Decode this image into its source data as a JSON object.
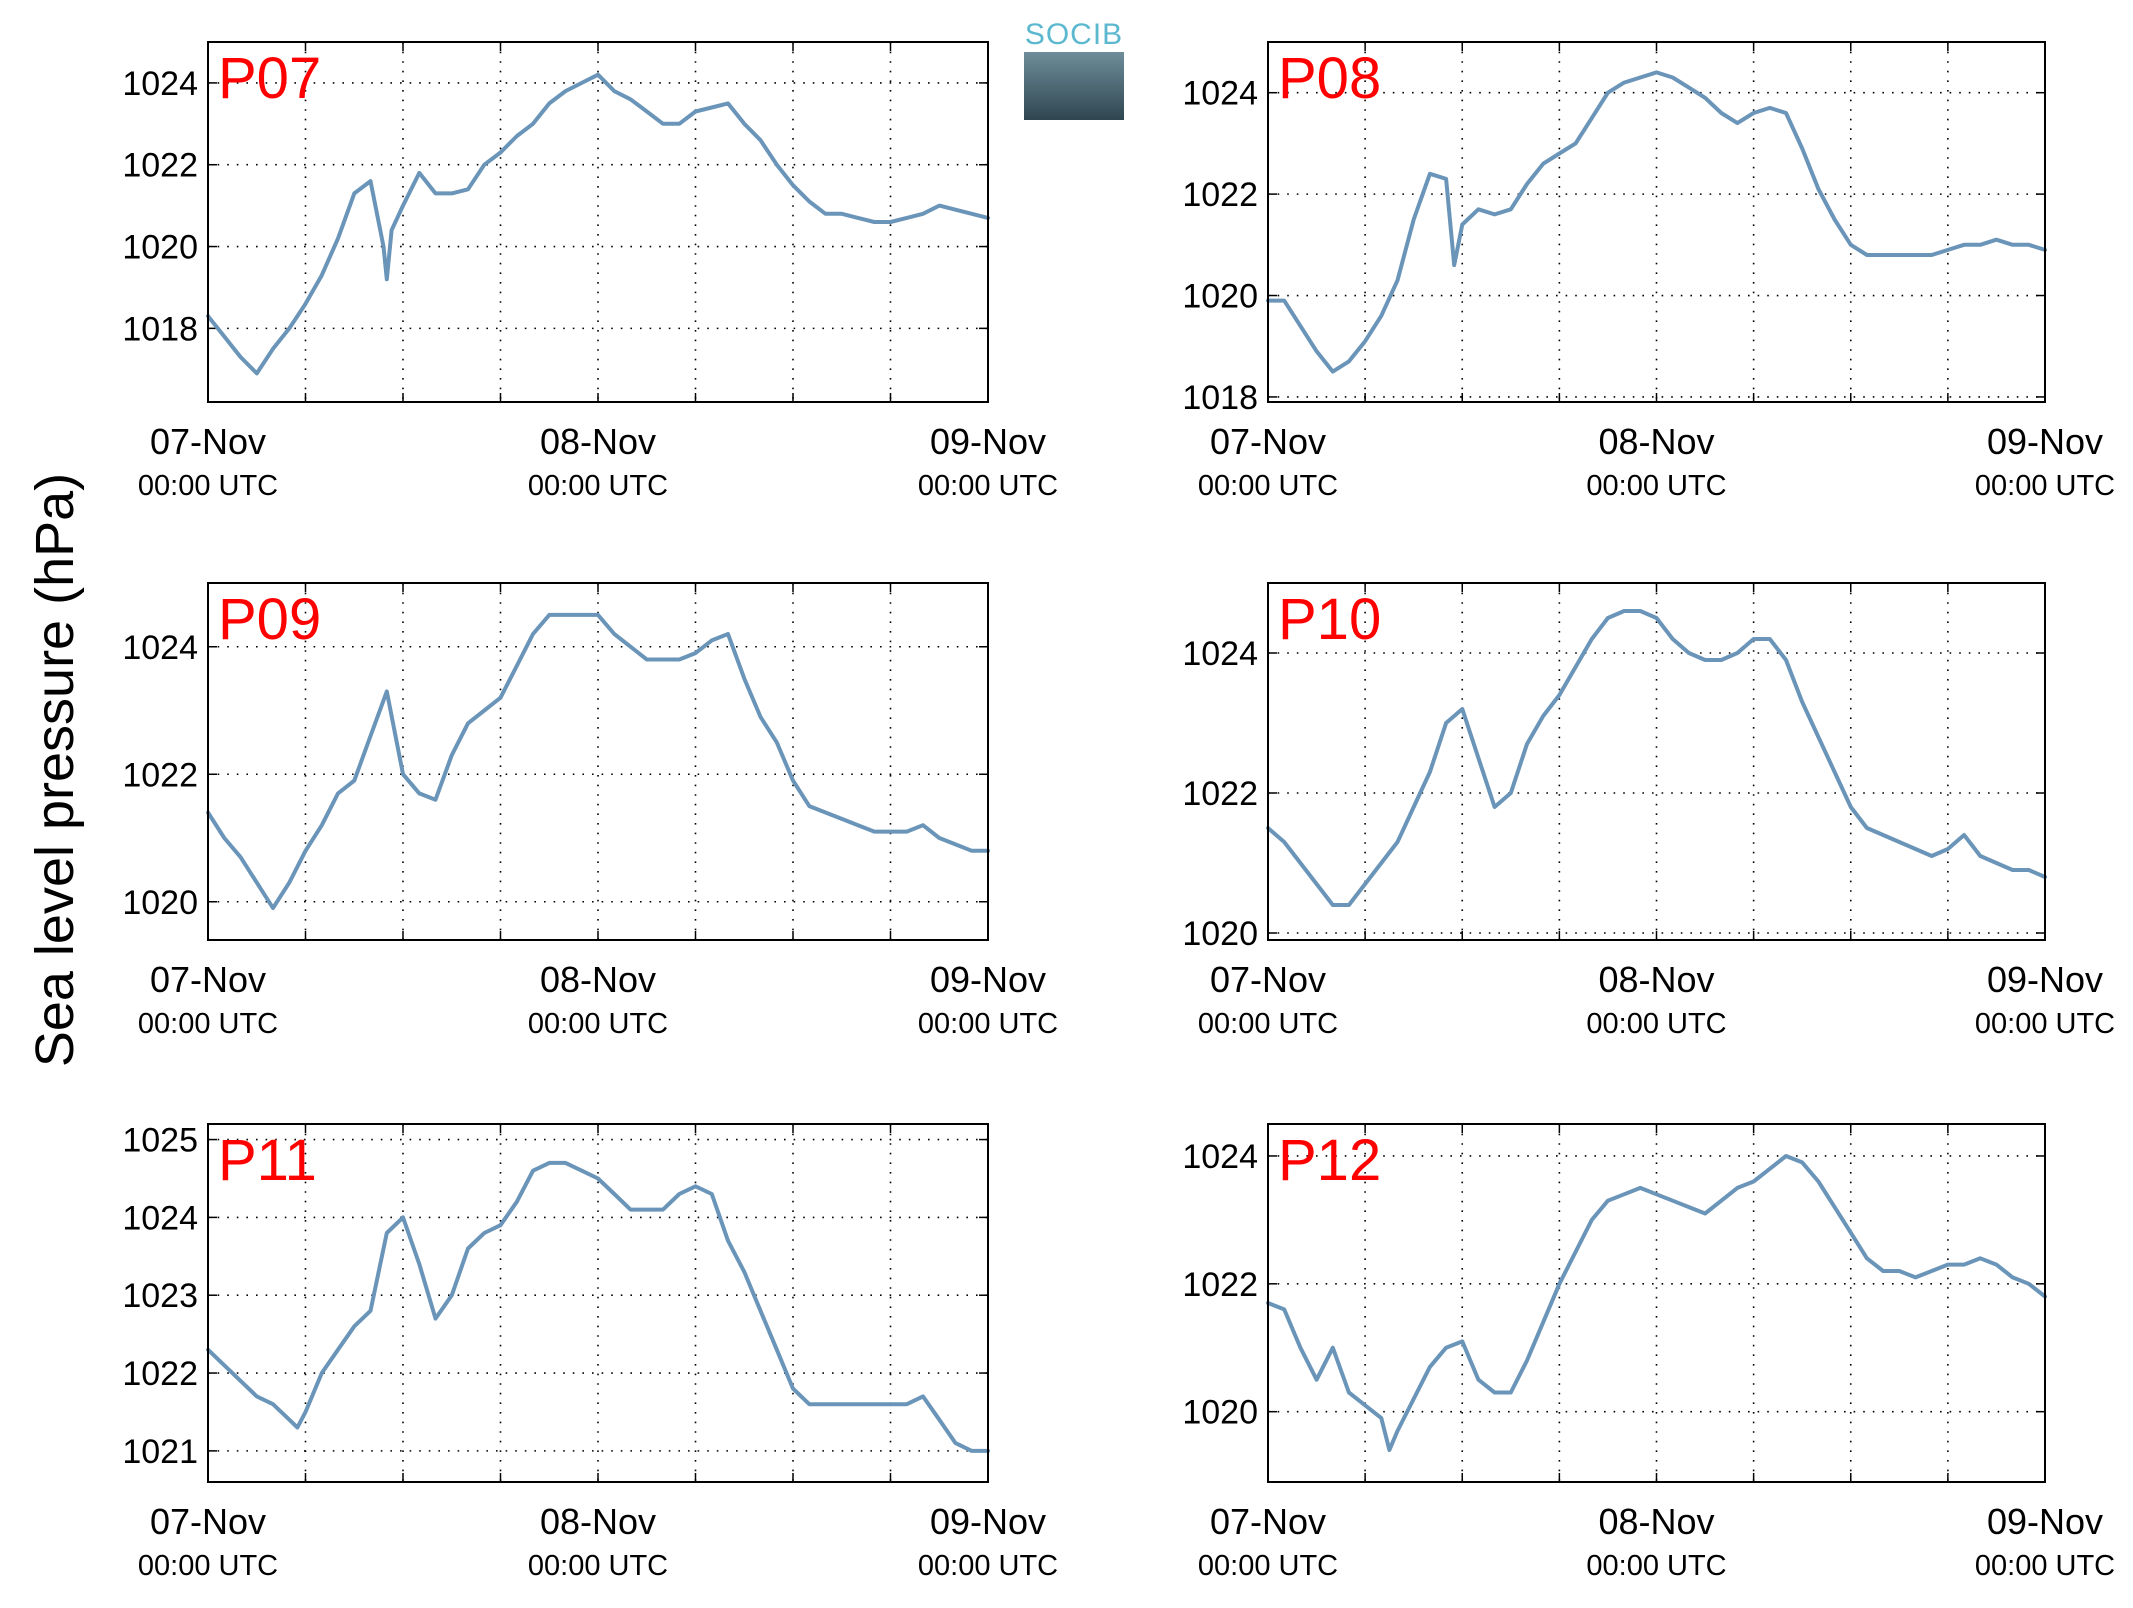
{
  "logo_text": "SOCIB",
  "ylabel": "Sea level pressure (hPa)",
  "colors": {
    "line": "#6a95b9",
    "panel_label": "#ff0000",
    "axis": "#000000",
    "grid": "#000000"
  },
  "chart_data": [
    {
      "type": "line",
      "title": "P07",
      "grid": true,
      "x_ticks": [
        {
          "day": "07-Nov",
          "time": "00:00 UTC"
        },
        {
          "day": "08-Nov",
          "time": "00:00 UTC"
        },
        {
          "day": "09-Nov",
          "time": "00:00 UTC"
        }
      ],
      "xlim_hours": [
        0,
        48
      ],
      "ylim": [
        1016.2,
        1025.0
      ],
      "yticks": [
        1018,
        1020,
        1022,
        1024
      ],
      "series": [
        {
          "x_hours": [
            0,
            1,
            2,
            3,
            4,
            5,
            6,
            7,
            8,
            9,
            10,
            10.8,
            11,
            11.3,
            12,
            13,
            14,
            15,
            16,
            17,
            18,
            19,
            20,
            21,
            22,
            23,
            24,
            25,
            26,
            27,
            28,
            29,
            30,
            31,
            32,
            33,
            34,
            35,
            36,
            37,
            38,
            39,
            40,
            41,
            42,
            43,
            44,
            45,
            46,
            47,
            48
          ],
          "y": [
            1018.3,
            1017.8,
            1017.3,
            1016.9,
            1017.5,
            1018.0,
            1018.6,
            1019.3,
            1020.2,
            1021.3,
            1021.6,
            1020.0,
            1019.2,
            1020.4,
            1021.0,
            1021.8,
            1021.3,
            1021.3,
            1021.4,
            1022.0,
            1022.3,
            1022.7,
            1023.0,
            1023.5,
            1023.8,
            1024.0,
            1024.2,
            1023.8,
            1023.6,
            1023.3,
            1023.0,
            1023.0,
            1023.3,
            1023.4,
            1023.5,
            1023.0,
            1022.6,
            1022.0,
            1021.5,
            1021.1,
            1020.8,
            1020.8,
            1020.7,
            1020.6,
            1020.6,
            1020.7,
            1020.8,
            1021.0,
            1020.9,
            1020.8,
            1020.7
          ]
        }
      ]
    },
    {
      "type": "line",
      "title": "P08",
      "grid": true,
      "x_ticks": [
        {
          "day": "07-Nov",
          "time": "00:00 UTC"
        },
        {
          "day": "08-Nov",
          "time": "00:00 UTC"
        },
        {
          "day": "09-Nov",
          "time": "00:00 UTC"
        }
      ],
      "xlim_hours": [
        0,
        48
      ],
      "ylim": [
        1017.9,
        1025.0
      ],
      "yticks": [
        1018,
        1020,
        1022,
        1024
      ],
      "series": [
        {
          "x_hours": [
            0,
            1,
            2,
            3,
            4,
            5,
            6,
            7,
            8,
            9,
            10,
            11,
            11.5,
            12,
            13,
            14,
            15,
            16,
            17,
            18,
            19,
            20,
            21,
            22,
            23,
            24,
            25,
            26,
            27,
            28,
            29,
            30,
            31,
            32,
            33,
            34,
            35,
            36,
            37,
            38,
            39,
            40,
            41,
            42,
            43,
            44,
            45,
            46,
            47,
            48
          ],
          "y": [
            1019.9,
            1019.9,
            1019.4,
            1018.9,
            1018.5,
            1018.7,
            1019.1,
            1019.6,
            1020.3,
            1021.5,
            1022.4,
            1022.3,
            1020.6,
            1021.4,
            1021.7,
            1021.6,
            1021.7,
            1022.2,
            1022.6,
            1022.8,
            1023.0,
            1023.5,
            1024.0,
            1024.2,
            1024.3,
            1024.4,
            1024.3,
            1024.1,
            1023.9,
            1023.6,
            1023.4,
            1023.6,
            1023.7,
            1023.6,
            1022.9,
            1022.1,
            1021.5,
            1021.0,
            1020.8,
            1020.8,
            1020.8,
            1020.8,
            1020.8,
            1020.9,
            1021.0,
            1021.0,
            1021.1,
            1021.0,
            1021.0,
            1020.9
          ]
        }
      ]
    },
    {
      "type": "line",
      "title": "P09",
      "grid": true,
      "x_ticks": [
        {
          "day": "07-Nov",
          "time": "00:00 UTC"
        },
        {
          "day": "08-Nov",
          "time": "00:00 UTC"
        },
        {
          "day": "09-Nov",
          "time": "00:00 UTC"
        }
      ],
      "xlim_hours": [
        0,
        48
      ],
      "ylim": [
        1019.4,
        1025.0
      ],
      "yticks": [
        1020,
        1022,
        1024
      ],
      "series": [
        {
          "x_hours": [
            0,
            1,
            2,
            3,
            4,
            5,
            6,
            7,
            8,
            9,
            10,
            11,
            12,
            13,
            14,
            15,
            16,
            17,
            18,
            19,
            20,
            21,
            22,
            23,
            24,
            25,
            26,
            27,
            28,
            29,
            30,
            31,
            32,
            33,
            34,
            35,
            36,
            37,
            38,
            39,
            40,
            41,
            42,
            43,
            44,
            45,
            46,
            47,
            48
          ],
          "y": [
            1021.4,
            1021.0,
            1020.7,
            1020.3,
            1019.9,
            1020.3,
            1020.8,
            1021.2,
            1021.7,
            1021.9,
            1022.6,
            1023.3,
            1022.0,
            1021.7,
            1021.6,
            1022.3,
            1022.8,
            1023.0,
            1023.2,
            1023.7,
            1024.2,
            1024.5,
            1024.5,
            1024.5,
            1024.5,
            1024.2,
            1024.0,
            1023.8,
            1023.8,
            1023.8,
            1023.9,
            1024.1,
            1024.2,
            1023.5,
            1022.9,
            1022.5,
            1021.9,
            1021.5,
            1021.4,
            1021.3,
            1021.2,
            1021.1,
            1021.1,
            1021.1,
            1021.2,
            1021.0,
            1020.9,
            1020.8,
            1020.8
          ]
        }
      ]
    },
    {
      "type": "line",
      "title": "P10",
      "grid": true,
      "x_ticks": [
        {
          "day": "07-Nov",
          "time": "00:00 UTC"
        },
        {
          "day": "08-Nov",
          "time": "00:00 UTC"
        },
        {
          "day": "09-Nov",
          "time": "00:00 UTC"
        }
      ],
      "xlim_hours": [
        0,
        48
      ],
      "ylim": [
        1019.9,
        1025.0
      ],
      "yticks": [
        1020,
        1022,
        1024
      ],
      "series": [
        {
          "x_hours": [
            0,
            1,
            2,
            3,
            4,
            5,
            6,
            7,
            8,
            9,
            10,
            11,
            12,
            13,
            14,
            15,
            16,
            17,
            18,
            19,
            20,
            21,
            22,
            23,
            24,
            25,
            26,
            27,
            28,
            29,
            30,
            31,
            32,
            33,
            34,
            35,
            36,
            37,
            38,
            39,
            40,
            41,
            42,
            43,
            44,
            45,
            46,
            47,
            48
          ],
          "y": [
            1021.5,
            1021.3,
            1021.0,
            1020.7,
            1020.4,
            1020.4,
            1020.7,
            1021.0,
            1021.3,
            1021.8,
            1022.3,
            1023.0,
            1023.2,
            1022.5,
            1021.8,
            1022.0,
            1022.7,
            1023.1,
            1023.4,
            1023.8,
            1024.2,
            1024.5,
            1024.6,
            1024.6,
            1024.5,
            1024.2,
            1024.0,
            1023.9,
            1023.9,
            1024.0,
            1024.2,
            1024.2,
            1023.9,
            1023.3,
            1022.8,
            1022.3,
            1021.8,
            1021.5,
            1021.4,
            1021.3,
            1021.2,
            1021.1,
            1021.2,
            1021.4,
            1021.1,
            1021.0,
            1020.9,
            1020.9,
            1020.8
          ]
        }
      ]
    },
    {
      "type": "line",
      "title": "P11",
      "grid": true,
      "x_ticks": [
        {
          "day": "07-Nov",
          "time": "00:00 UTC"
        },
        {
          "day": "08-Nov",
          "time": "00:00 UTC"
        },
        {
          "day": "09-Nov",
          "time": "00:00 UTC"
        }
      ],
      "xlim_hours": [
        0,
        48
      ],
      "ylim": [
        1020.6,
        1025.2
      ],
      "yticks": [
        1021,
        1022,
        1023,
        1024,
        1025
      ],
      "series": [
        {
          "x_hours": [
            0,
            1,
            2,
            3,
            4,
            5,
            5.5,
            6,
            7,
            8,
            9,
            10,
            11,
            12,
            13,
            14,
            15,
            16,
            17,
            18,
            19,
            20,
            21,
            22,
            23,
            24,
            25,
            26,
            27,
            28,
            29,
            30,
            31,
            32,
            33,
            34,
            35,
            36,
            37,
            38,
            39,
            40,
            41,
            42,
            43,
            44,
            45,
            46,
            47,
            48
          ],
          "y": [
            1022.3,
            1022.1,
            1021.9,
            1021.7,
            1021.6,
            1021.4,
            1021.3,
            1021.5,
            1022.0,
            1022.3,
            1022.6,
            1022.8,
            1023.8,
            1024.0,
            1023.4,
            1022.7,
            1023.0,
            1023.6,
            1023.8,
            1023.9,
            1024.2,
            1024.6,
            1024.7,
            1024.7,
            1024.6,
            1024.5,
            1024.3,
            1024.1,
            1024.1,
            1024.1,
            1024.3,
            1024.4,
            1024.3,
            1023.7,
            1023.3,
            1022.8,
            1022.3,
            1021.8,
            1021.6,
            1021.6,
            1021.6,
            1021.6,
            1021.6,
            1021.6,
            1021.6,
            1021.7,
            1021.4,
            1021.1,
            1021.0,
            1021.0
          ]
        }
      ]
    },
    {
      "type": "line",
      "title": "P12",
      "grid": true,
      "x_ticks": [
        {
          "day": "07-Nov",
          "time": "00:00 UTC"
        },
        {
          "day": "08-Nov",
          "time": "00:00 UTC"
        },
        {
          "day": "09-Nov",
          "time": "00:00 UTC"
        }
      ],
      "xlim_hours": [
        0,
        48
      ],
      "ylim": [
        1018.9,
        1024.5
      ],
      "yticks": [
        1020,
        1022,
        1024
      ],
      "series": [
        {
          "x_hours": [
            0,
            1,
            2,
            3,
            4,
            5,
            6,
            7,
            7.5,
            8,
            9,
            10,
            11,
            12,
            13,
            14,
            15,
            16,
            17,
            18,
            19,
            20,
            21,
            22,
            23,
            24,
            25,
            26,
            27,
            28,
            29,
            30,
            31,
            32,
            33,
            34,
            35,
            36,
            37,
            38,
            39,
            40,
            41,
            42,
            43,
            44,
            45,
            46,
            47,
            48
          ],
          "y": [
            1021.7,
            1021.6,
            1021.0,
            1020.5,
            1021.0,
            1020.3,
            1020.1,
            1019.9,
            1019.4,
            1019.7,
            1020.2,
            1020.7,
            1021.0,
            1021.1,
            1020.5,
            1020.3,
            1020.3,
            1020.8,
            1021.4,
            1022.0,
            1022.5,
            1023.0,
            1023.3,
            1023.4,
            1023.5,
            1023.4,
            1023.3,
            1023.2,
            1023.1,
            1023.3,
            1023.5,
            1023.6,
            1023.8,
            1024.0,
            1023.9,
            1023.6,
            1023.2,
            1022.8,
            1022.4,
            1022.2,
            1022.2,
            1022.1,
            1022.2,
            1022.3,
            1022.3,
            1022.4,
            1022.3,
            1022.1,
            1022.0,
            1021.8
          ]
        }
      ]
    }
  ]
}
